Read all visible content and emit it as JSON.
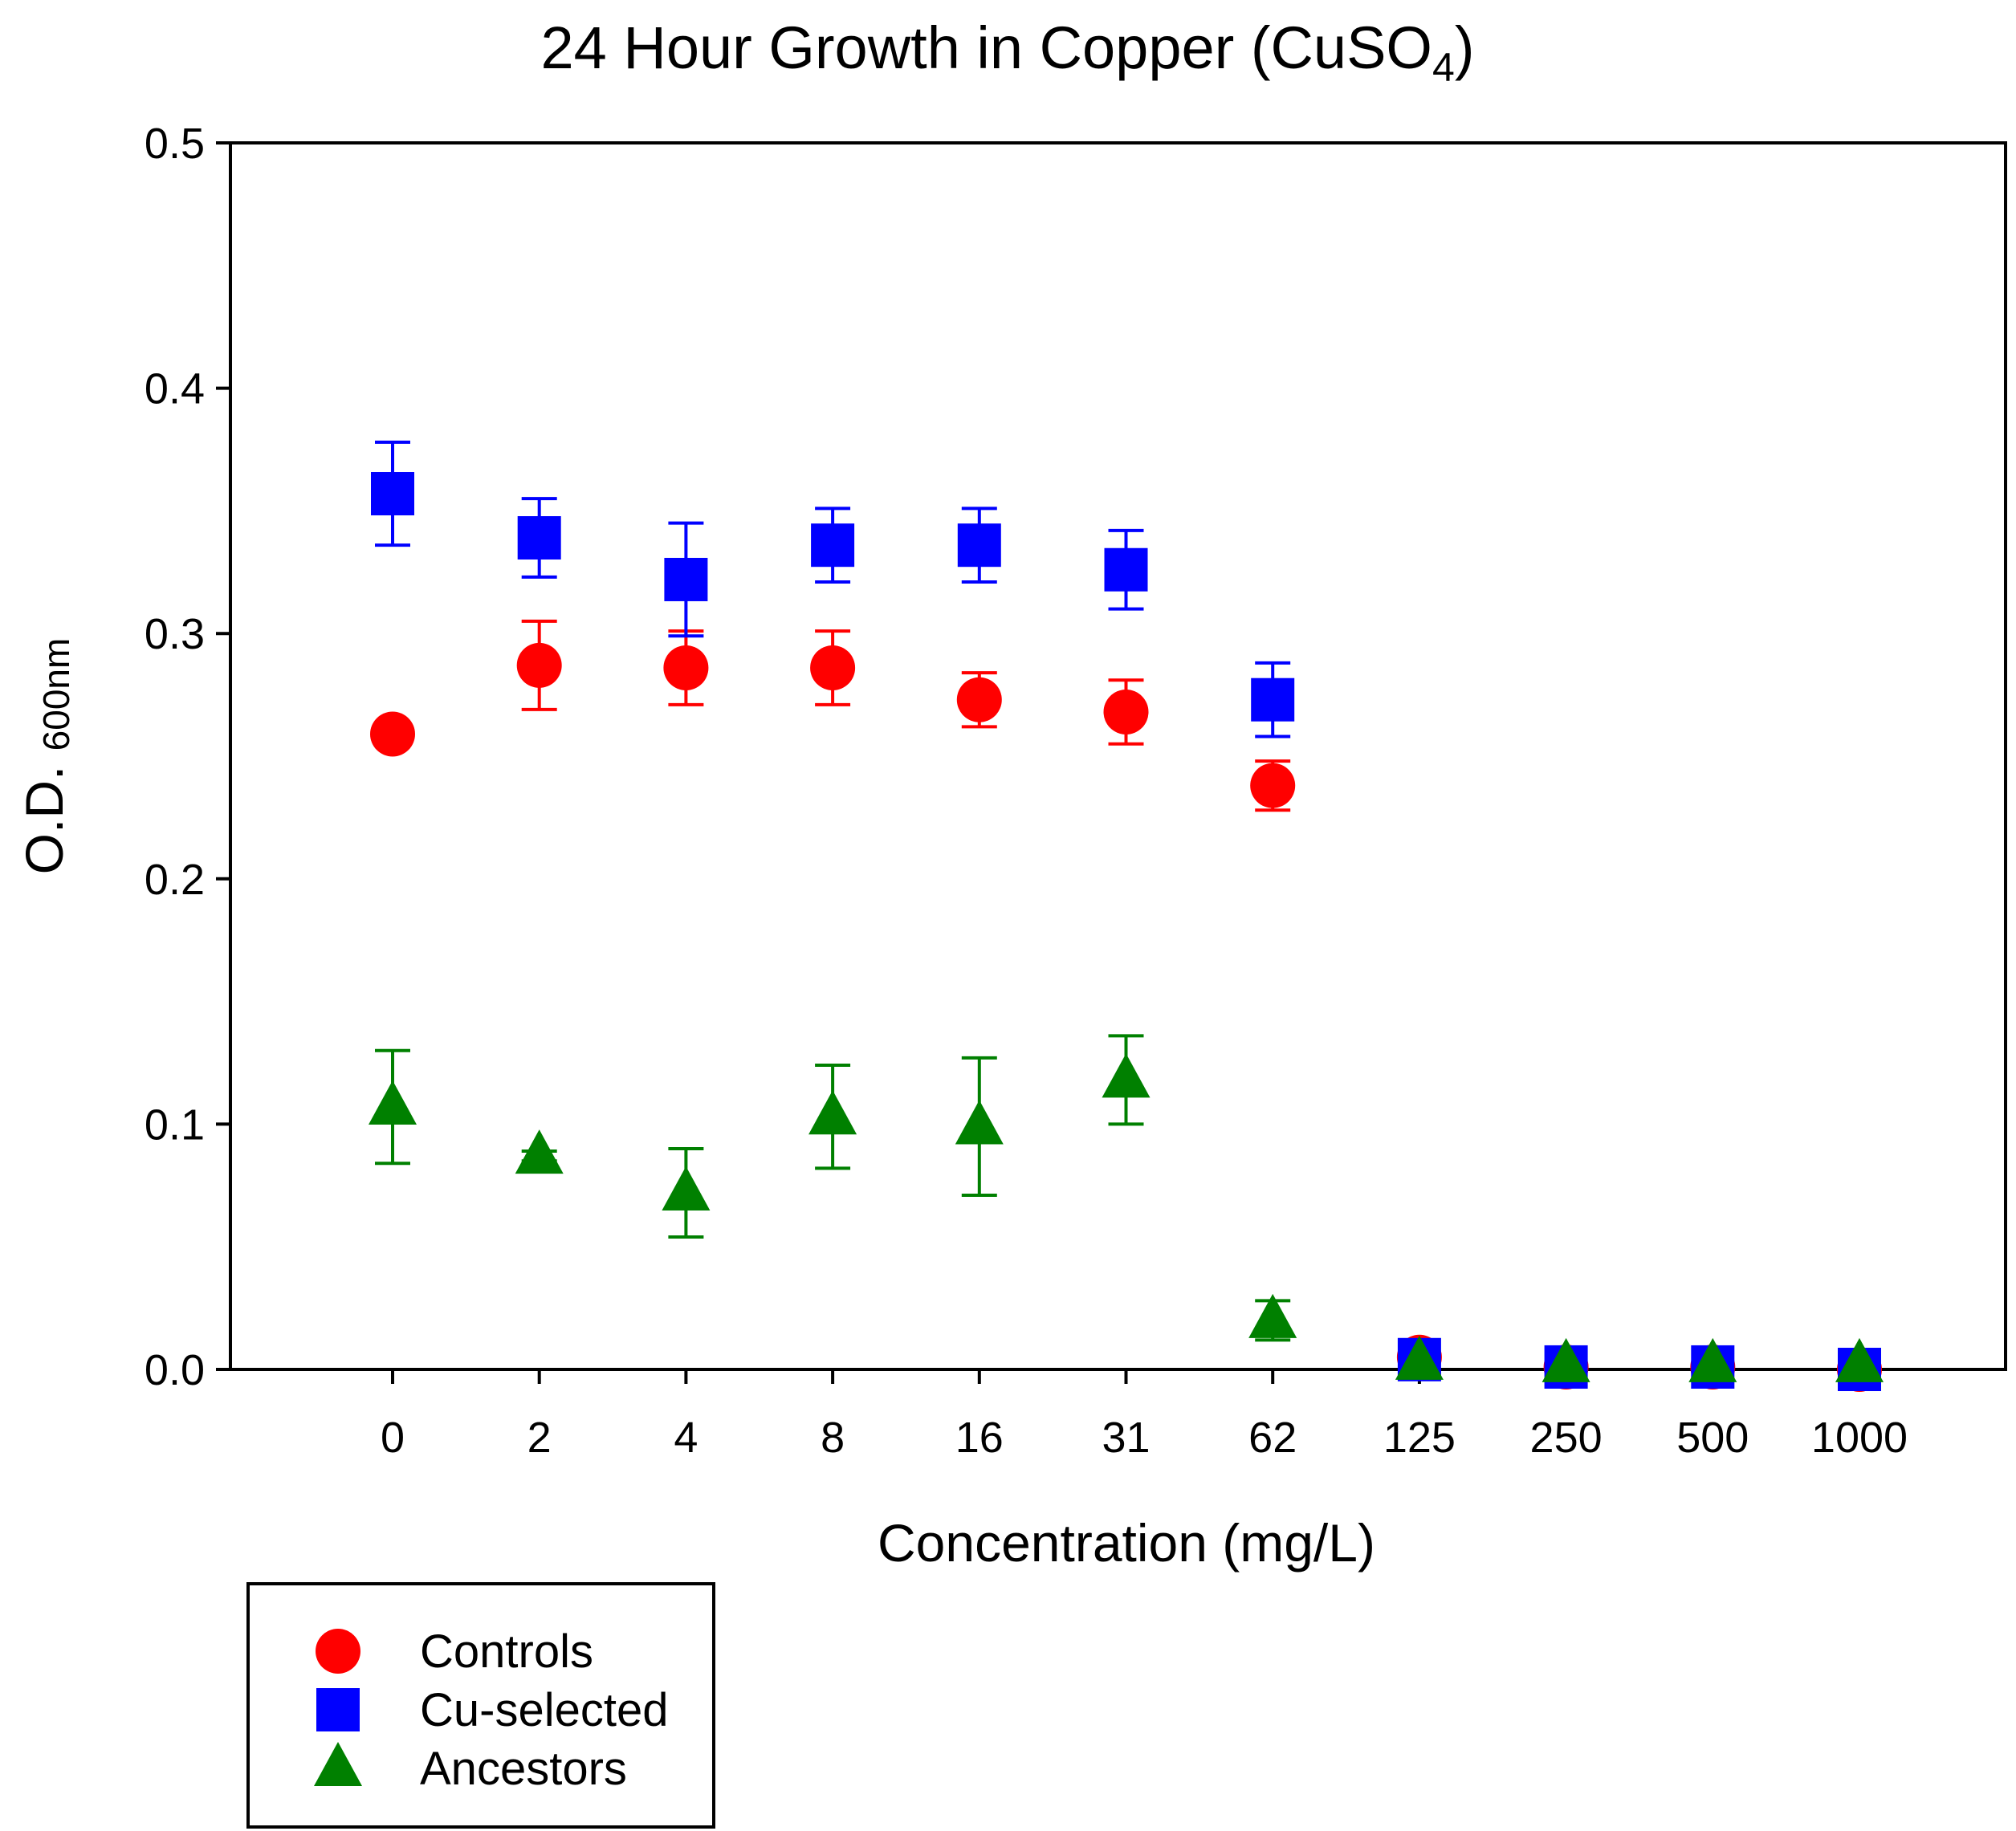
{
  "chart_data": {
    "type": "scatter",
    "title": {
      "text": "24 Hour Growth in Copper (CuSO",
      "subscript": "4",
      "suffix": ")"
    },
    "xlabel": "Concentration (mg/L)",
    "ylabel": {
      "text": "O.D. ",
      "subscript": "600nm"
    },
    "categories": [
      "0",
      "2",
      "4",
      "8",
      "16",
      "31",
      "62",
      "125",
      "250",
      "500",
      "1000"
    ],
    "ylim": [
      0,
      0.5
    ],
    "yticks": [
      "0.0",
      "0.1",
      "0.2",
      "0.3",
      "0.4",
      "0.5"
    ],
    "grid": false,
    "legend_position": "below-left",
    "series": [
      {
        "name": "Controls",
        "marker": "circle",
        "color": "#ff0000",
        "values": [
          0.259,
          0.287,
          0.286,
          0.286,
          0.273,
          0.268,
          0.238,
          0.005,
          0.001,
          0.001,
          0.0
        ],
        "errors": [
          0,
          0.018,
          0.015,
          0.015,
          0.011,
          0.013,
          0.01,
          0,
          0,
          0,
          0
        ]
      },
      {
        "name": "Cu-selected",
        "marker": "square",
        "color": "#0000ff",
        "values": [
          0.357,
          0.339,
          0.322,
          0.336,
          0.336,
          0.326,
          0.273,
          0.004,
          0.001,
          0.001,
          0.0
        ],
        "errors": [
          0.021,
          0.016,
          0.023,
          0.015,
          0.015,
          0.016,
          0.015,
          0,
          0,
          0,
          0
        ]
      },
      {
        "name": "Ancestors",
        "marker": "triangle",
        "color": "#008000",
        "values": [
          0.107,
          0.087,
          0.072,
          0.103,
          0.099,
          0.118,
          0.02,
          0.003,
          0.002,
          0.002,
          0.002
        ],
        "errors": [
          0.023,
          0.002,
          0.018,
          0.021,
          0.028,
          0.018,
          0.008,
          0,
          0,
          0,
          0
        ]
      }
    ]
  }
}
